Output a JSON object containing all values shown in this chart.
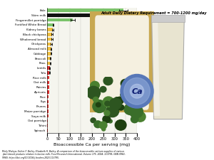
{
  "xlabel": "Bioaccessible Ca per serving (mg)",
  "xlim": [
    0,
    400
  ],
  "xticks": [
    0,
    50,
    100,
    150,
    200,
    250,
    300,
    350,
    400
  ],
  "categories": [
    "Kale",
    "Skim milk",
    "Fingermillet porridge",
    "Fortified White Bread",
    "Kidney beans",
    "Black chickpeas",
    "Wholemeal bread",
    "Chickpeas",
    "Almond milk",
    "Cabbage",
    "Broccoli",
    "Peas",
    "Lentils",
    "Tofu",
    "Rice milk",
    "Oat milk",
    "Raisins",
    "Apricots",
    "Rice",
    "Figs",
    "Prunes",
    "Maize porridge",
    "Soya milk",
    "Oat porridge",
    "Tahini",
    "Spinach"
  ],
  "values": [
    340,
    305,
    115,
    28,
    25,
    22,
    21,
    19,
    18,
    16,
    15,
    14,
    12,
    11,
    10,
    10,
    9,
    8,
    7,
    7,
    6,
    5,
    5,
    4,
    4,
    3
  ],
  "errors": [
    18,
    12,
    10,
    2,
    2,
    2,
    3,
    2,
    1.5,
    1.5,
    1.5,
    1,
    1,
    1,
    0,
    0,
    0,
    0,
    0,
    0,
    0,
    0,
    0,
    0,
    0,
    0
  ],
  "colors": [
    "#7ac36a",
    "#111111",
    "#7ac36a",
    "#7ac36a",
    "#f0c040",
    "#f0c040",
    "#f0c040",
    "#f0c040",
    "#f0c040",
    "#f0c040",
    "#f0c040",
    "#f0c040",
    "#e03030",
    "#e03030",
    "#e03030",
    "#e03030",
    "#e03030",
    "#e03030",
    "#e03030",
    "#e03030",
    "#e03030",
    "#e03030",
    "#e03030",
    "#e03030",
    "#e03030",
    "#e03030"
  ],
  "annotation_text": "Adult Daily Dietary Requirement = 700-1200 mg/day",
  "footnote": "Molly Muleya, Esther F. Bailey, Elizabeth H. Bailey: A comparison of the bioaccessible calcium supplies of various\nplant-based products relative to bovine milk, Food Research International, Volume 175, 2024, 113795, ISSN 0963-\n9969, https://doi.org/10.1016/j.foodres.2023.113795.",
  "chart_bg": "#f5f5ee",
  "fig_bg": "#ffffff",
  "bread_color": "#e8d8a0",
  "bread_crust_color": "#c8a850",
  "milk_glass_color": "#f0f0f0",
  "milk_color": "#e8e4d0",
  "ca_bubble_color": "#7090c8",
  "ca_text_color": "#0a1a70",
  "kale_color": "#2d5520"
}
